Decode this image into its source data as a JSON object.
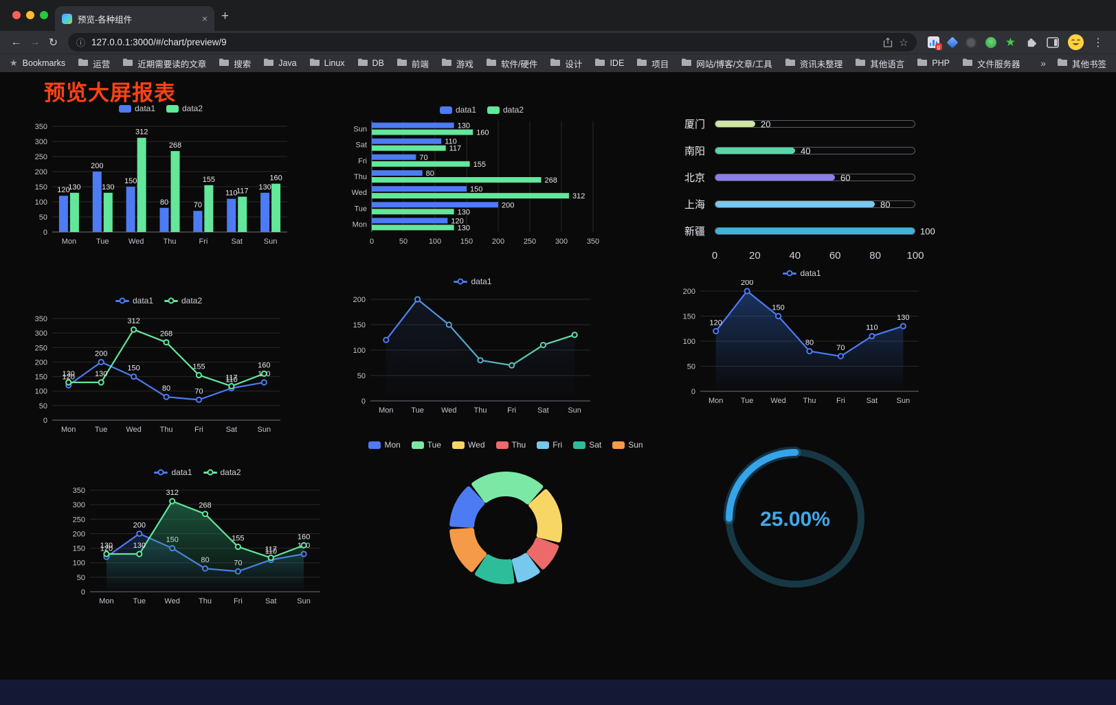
{
  "browser": {
    "tab_title": "预览-各种组件",
    "url": "127.0.0.1:3000/#/chart/preview/9",
    "bookmarks_label": "Bookmarks",
    "bookmarks": [
      "运营",
      "近期需要读的文章",
      "搜索",
      "Java",
      "Linux",
      "DB",
      "前端",
      "游戏",
      "软件/硬件",
      "设计",
      "IDE",
      "项目",
      "网站/博客/文章/工具",
      "资讯未整理",
      "其他语言",
      "PHP",
      "文件服务器"
    ],
    "bookmarks_overflow": "»",
    "other_bookmarks": "其他书签",
    "icons": {
      "back": "←",
      "forward": "→",
      "reload": "↻",
      "new_tab": "+",
      "close_tab": "×",
      "site_info": "ⓘ",
      "star_outline": "☆",
      "star_filled": "★",
      "more": "⋮",
      "ext_badge": "g"
    }
  },
  "page": {
    "title": "预览大屏报表"
  },
  "chart_data": [
    {
      "id": "bar-grouped",
      "type": "bar",
      "variant": "grouped-vertical",
      "categories": [
        "Mon",
        "Tue",
        "Wed",
        "Thu",
        "Fri",
        "Sat",
        "Sun"
      ],
      "series": [
        {
          "name": "data1",
          "color": "#4d7bf3",
          "values": [
            120,
            200,
            150,
            80,
            70,
            110,
            130
          ]
        },
        {
          "name": "data2",
          "color": "#62e79b",
          "values": [
            130,
            130,
            312,
            268,
            155,
            117,
            160
          ]
        }
      ],
      "ylim": [
        0,
        350
      ],
      "ytick": 50,
      "legend_position": "top",
      "grid": true
    },
    {
      "id": "bar-horizontal",
      "type": "bar",
      "variant": "grouped-horizontal",
      "categories": [
        "Mon",
        "Tue",
        "Wed",
        "Thu",
        "Fri",
        "Sat",
        "Sun"
      ],
      "category_display": "Sun at top, Mon at bottom",
      "series": [
        {
          "name": "data1",
          "color": "#4d7bf3",
          "values": [
            120,
            200,
            150,
            80,
            70,
            110,
            130
          ]
        },
        {
          "name": "data2",
          "color": "#62e79b",
          "values": [
            130,
            130,
            312,
            268,
            155,
            117,
            160
          ]
        }
      ],
      "xlim": [
        0,
        350
      ],
      "xtick": 50,
      "legend_position": "top",
      "grid": true
    },
    {
      "id": "progress-bars",
      "type": "bar",
      "variant": "progress",
      "items": [
        {
          "label": "厦门",
          "value": 20,
          "color": "#cfe6a2"
        },
        {
          "label": "南阳",
          "value": 40,
          "color": "#57d8a5"
        },
        {
          "label": "北京",
          "value": 60,
          "color": "#8b7fe8"
        },
        {
          "label": "上海",
          "value": 80,
          "color": "#79c8ef"
        },
        {
          "label": "新疆",
          "value": 100,
          "color": "#3fb1e3"
        }
      ],
      "xlim": [
        0,
        100
      ],
      "xticks": [
        0,
        20,
        40,
        60,
        80,
        100
      ]
    },
    {
      "id": "line-two-series",
      "type": "line",
      "variant": "multi-line",
      "categories": [
        "Mon",
        "Tue",
        "Wed",
        "Thu",
        "Fri",
        "Sat",
        "Sun"
      ],
      "series": [
        {
          "name": "data1",
          "color": "#4d7bf3",
          "values": [
            120,
            200,
            150,
            80,
            70,
            110,
            130
          ],
          "point_labels": true
        },
        {
          "name": "data2",
          "color": "#62e79b",
          "values": [
            130,
            130,
            312,
            268,
            155,
            117,
            160
          ],
          "point_labels": true
        }
      ],
      "ylim": [
        0,
        350
      ],
      "ytick": 50,
      "legend_position": "top",
      "grid": true
    },
    {
      "id": "line-gradient",
      "type": "line",
      "variant": "gradient-line",
      "categories": [
        "Mon",
        "Tue",
        "Wed",
        "Thu",
        "Fri",
        "Sat",
        "Sun"
      ],
      "series": [
        {
          "name": "data1",
          "gradient": [
            "#4d7bf3",
            "#62e79b"
          ],
          "values": [
            120,
            200,
            150,
            80,
            70,
            110,
            130
          ],
          "point_labels": false,
          "area": "#3a62b0",
          "area_opacity": 0.14
        }
      ],
      "ylim": [
        0,
        200
      ],
      "ytick": 50,
      "legend_position": "top",
      "grid": true
    },
    {
      "id": "line-area",
      "type": "area",
      "variant": "area-line",
      "categories": [
        "Mon",
        "Tue",
        "Wed",
        "Thu",
        "Fri",
        "Sat",
        "Sun"
      ],
      "series": [
        {
          "name": "data1",
          "color": "#4d7bf3",
          "values": [
            120,
            200,
            150,
            80,
            70,
            110,
            130
          ],
          "point_labels": true,
          "area": "#2a5bb0",
          "area_opacity": 0.5
        }
      ],
      "ylim": [
        0,
        200
      ],
      "ytick": 50,
      "legend_position": "top",
      "grid": true
    },
    {
      "id": "line-area-two",
      "type": "area",
      "variant": "area-multi-line",
      "categories": [
        "Mon",
        "Tue",
        "Wed",
        "Thu",
        "Fri",
        "Sat",
        "Sun"
      ],
      "series": [
        {
          "name": "data1",
          "color": "#4d7bf3",
          "values": [
            120,
            200,
            150,
            80,
            70,
            110,
            130
          ],
          "point_labels": true,
          "area": "#24508f",
          "area_opacity": 0.35
        },
        {
          "name": "data2",
          "color": "#62e79b",
          "values": [
            130,
            130,
            312,
            268,
            155,
            117,
            160
          ],
          "point_labels": true,
          "area": "#2fae77",
          "area_opacity": 0.45
        }
      ],
      "ylim": [
        0,
        350
      ],
      "ytick": 50,
      "legend_position": "top",
      "grid": true
    },
    {
      "id": "donut",
      "type": "pie",
      "variant": "donut",
      "legend_position": "top",
      "slices": [
        {
          "label": "Mon",
          "value": 120,
          "color": "#4d7bf3"
        },
        {
          "label": "Tue",
          "value": 200,
          "color": "#7be8a5"
        },
        {
          "label": "Wed",
          "value": 150,
          "color": "#f7d665"
        },
        {
          "label": "Thu",
          "value": 80,
          "color": "#ec6a6a"
        },
        {
          "label": "Fri",
          "value": 70,
          "color": "#76c8ee"
        },
        {
          "label": "Sat",
          "value": 110,
          "color": "#2dbd9b"
        },
        {
          "label": "Sun",
          "value": 130,
          "color": "#f59a48"
        }
      ],
      "inner_radius_ratio": 0.62
    },
    {
      "id": "gauge",
      "type": "pie",
      "variant": "gauge",
      "percent": 25,
      "value_text": "25.00%",
      "color": "#35a4e8",
      "track_color": "#173743"
    }
  ]
}
